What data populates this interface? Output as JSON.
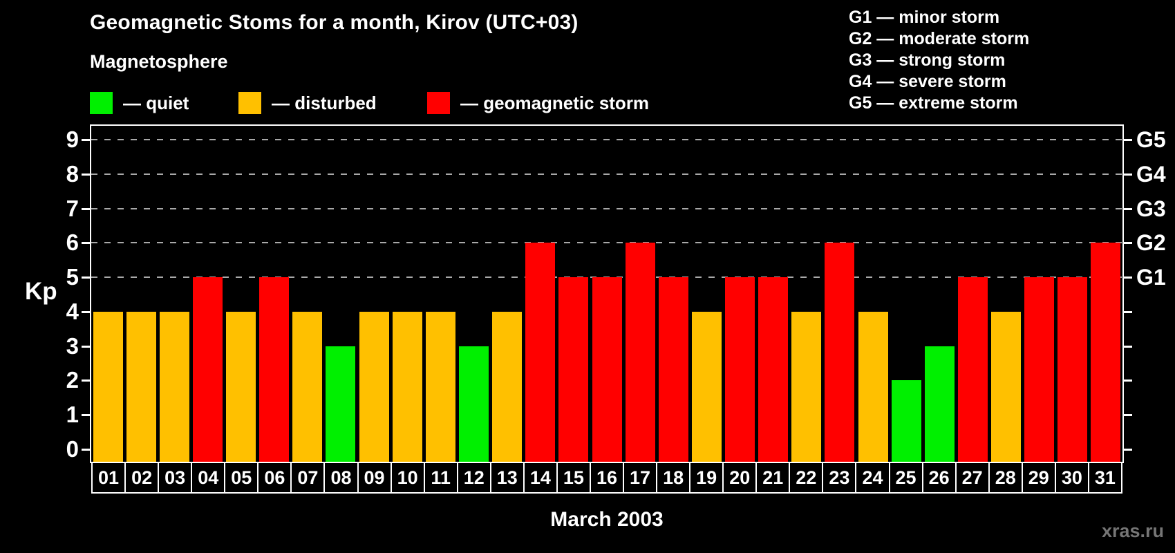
{
  "header": {
    "title": "Geomagnetic Stoms for a month, Kirov (UTC+03)",
    "subtitle": "Magnetosphere"
  },
  "legend": {
    "items": [
      {
        "name": "quiet",
        "color": "#00f000",
        "label": "— quiet"
      },
      {
        "name": "disturbed",
        "color": "#ffc000",
        "label": "— disturbed"
      },
      {
        "name": "storm",
        "color": "#ff0000",
        "label": "— geomagnetic storm"
      }
    ]
  },
  "g_scale_legend": {
    "lines": [
      "G1 — minor storm",
      "G2 — moderate storm",
      "G3 — strong storm",
      "G4 — severe storm",
      "G5 — extreme storm"
    ]
  },
  "watermark": "xras.ru",
  "chart_data": {
    "type": "bar",
    "title": "Geomagnetic Stoms for a month, Kirov (UTC+03)",
    "subtitle": "Magnetosphere",
    "xlabel": "March 2003",
    "ylabel": "Kp",
    "ylim": [
      0,
      9
    ],
    "grid": true,
    "gridlines_at": [
      5,
      6,
      7,
      8,
      9
    ],
    "legend_position": "top-left",
    "y_ticks": [
      0,
      1,
      2,
      3,
      4,
      5,
      6,
      7,
      8,
      9
    ],
    "right_axis_labels": [
      {
        "kp": 5,
        "label": "G1"
      },
      {
        "kp": 6,
        "label": "G2"
      },
      {
        "kp": 7,
        "label": "G3"
      },
      {
        "kp": 8,
        "label": "G4"
      },
      {
        "kp": 9,
        "label": "G5"
      }
    ],
    "categories": [
      "01",
      "02",
      "03",
      "04",
      "05",
      "06",
      "07",
      "08",
      "09",
      "10",
      "11",
      "12",
      "13",
      "14",
      "15",
      "16",
      "17",
      "18",
      "19",
      "20",
      "21",
      "22",
      "23",
      "24",
      "25",
      "26",
      "27",
      "28",
      "29",
      "30",
      "31"
    ],
    "values": [
      4,
      4,
      4,
      5,
      4,
      5,
      4,
      3,
      4,
      4,
      4,
      3,
      4,
      6,
      5,
      5,
      6,
      5,
      4,
      5,
      5,
      4,
      6,
      4,
      2,
      3,
      5,
      4,
      5,
      5,
      6
    ],
    "statuses": [
      "disturbed",
      "disturbed",
      "disturbed",
      "storm",
      "disturbed",
      "storm",
      "disturbed",
      "quiet",
      "disturbed",
      "disturbed",
      "disturbed",
      "quiet",
      "disturbed",
      "storm",
      "storm",
      "storm",
      "storm",
      "storm",
      "disturbed",
      "storm",
      "storm",
      "disturbed",
      "storm",
      "disturbed",
      "quiet",
      "quiet",
      "storm",
      "disturbed",
      "storm",
      "storm",
      "storm"
    ],
    "status_colors": {
      "quiet": "#00f000",
      "disturbed": "#ffc000",
      "storm": "#ff0000"
    }
  }
}
